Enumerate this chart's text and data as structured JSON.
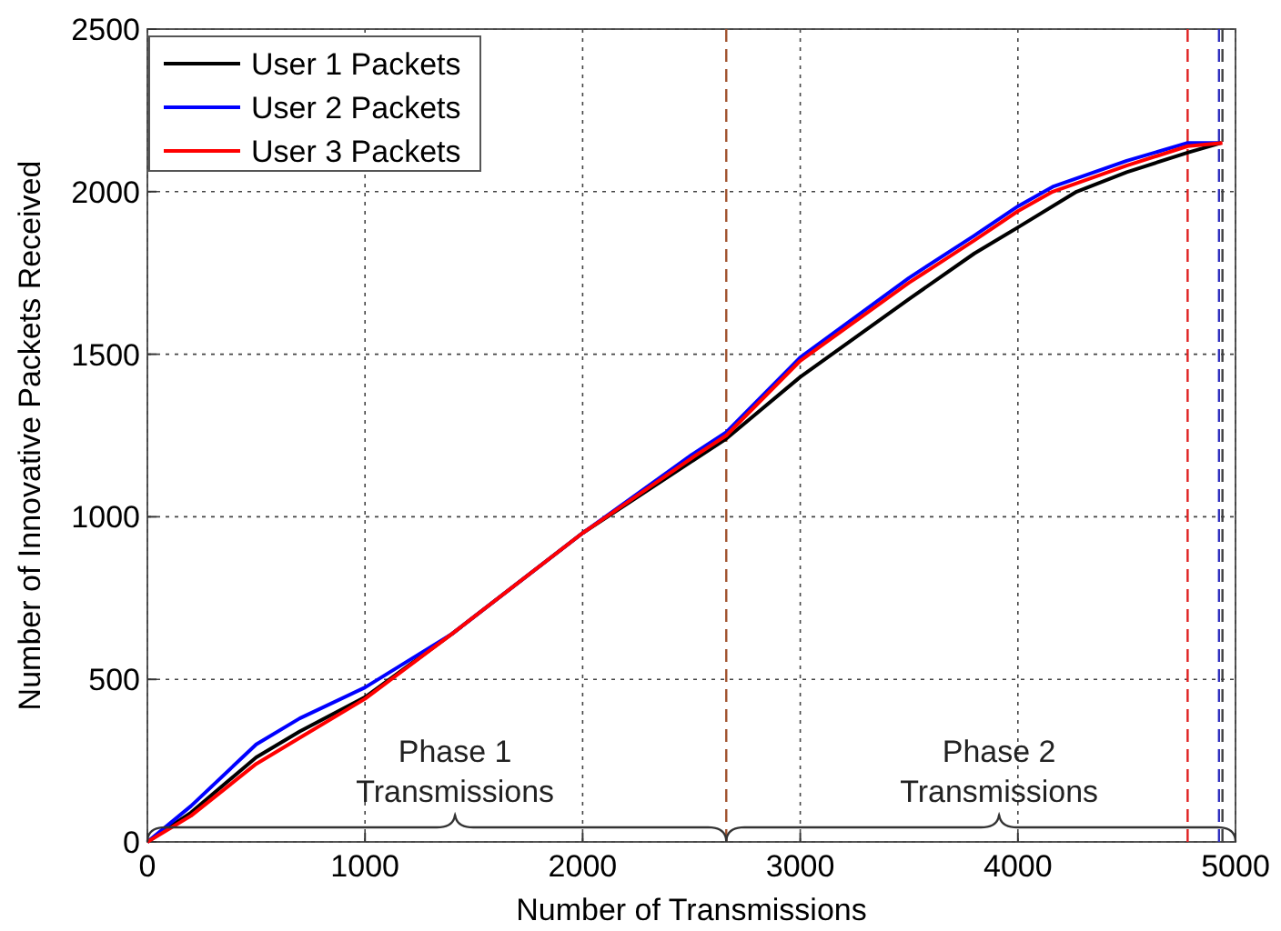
{
  "chart_data": {
    "type": "line",
    "xlabel": "Number of Transmissions",
    "ylabel": "Number of Innovative Packets Received",
    "xlim": [
      0,
      5000
    ],
    "ylim": [
      0,
      2500
    ],
    "xticks": [
      0,
      1000,
      2000,
      3000,
      4000,
      5000
    ],
    "yticks": [
      0,
      500,
      1000,
      1500,
      2000,
      2500
    ],
    "grid": true,
    "legend": "top left",
    "line_style": "solid",
    "marker": "none",
    "series": [
      {
        "name": "User 1 Packets",
        "color": "#000000",
        "x": [
          0,
          200,
          500,
          700,
          1000,
          1400,
          2000,
          2500,
          2660,
          3000,
          3500,
          3800,
          4000,
          4270,
          4500,
          4780,
          4935
        ],
        "values": [
          0,
          90,
          260,
          340,
          445,
          640,
          950,
          1170,
          1240,
          1430,
          1670,
          1810,
          1890,
          2000,
          2060,
          2120,
          2150
        ]
      },
      {
        "name": "User 2 Packets",
        "color": "#0000ff",
        "x": [
          0,
          200,
          500,
          700,
          1000,
          1400,
          2000,
          2500,
          2660,
          3000,
          3500,
          3800,
          4000,
          4160,
          4500,
          4780,
          4924
        ],
        "values": [
          0,
          110,
          300,
          380,
          475,
          640,
          950,
          1190,
          1260,
          1490,
          1735,
          1865,
          1955,
          2015,
          2095,
          2150,
          2150
        ]
      },
      {
        "name": "User 3 Packets",
        "color": "#ff0000",
        "x": [
          0,
          200,
          500,
          700,
          1000,
          1400,
          2000,
          2500,
          2660,
          3000,
          3500,
          3800,
          4000,
          4160,
          4500,
          4780,
          4940
        ],
        "values": [
          0,
          80,
          240,
          320,
          440,
          640,
          950,
          1180,
          1250,
          1480,
          1720,
          1850,
          1940,
          2000,
          2080,
          2140,
          2150
        ]
      }
    ],
    "ref_lines": [
      {
        "axis": "x",
        "value": 2660,
        "color": "#a0522d",
        "line_style": "dashed"
      },
      {
        "axis": "x",
        "value": 4780,
        "color": "#e02020",
        "line_style": "dashed"
      },
      {
        "axis": "x",
        "value": 4924,
        "color": "#3030c0",
        "line_style": "dashed"
      },
      {
        "axis": "x",
        "value": 4940,
        "color": "#404040",
        "line_style": "dashed"
      }
    ],
    "annotations": [
      "Phase 1 Transmissions",
      "Phase 2 Transmissions"
    ]
  }
}
